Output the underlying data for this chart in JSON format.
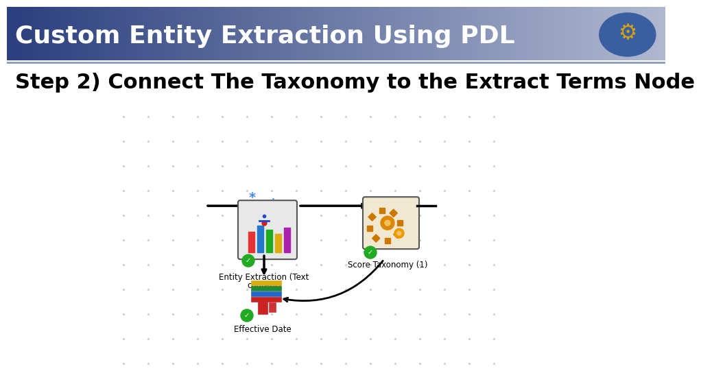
{
  "title": "Custom Entity Extraction Using PDL",
  "subtitle": "Step 2) Connect The Taxonomy to the Extract Terms Node",
  "title_bg_left": "#2a3f7e",
  "title_bg_right": "#b0b8d0",
  "title_color": "#ffffff",
  "subtitle_color": "#000000",
  "bg_color": "#ffffff",
  "dot_color": "#cccccc",
  "subtitle_fontsize": 22,
  "title_fontsize": 26
}
